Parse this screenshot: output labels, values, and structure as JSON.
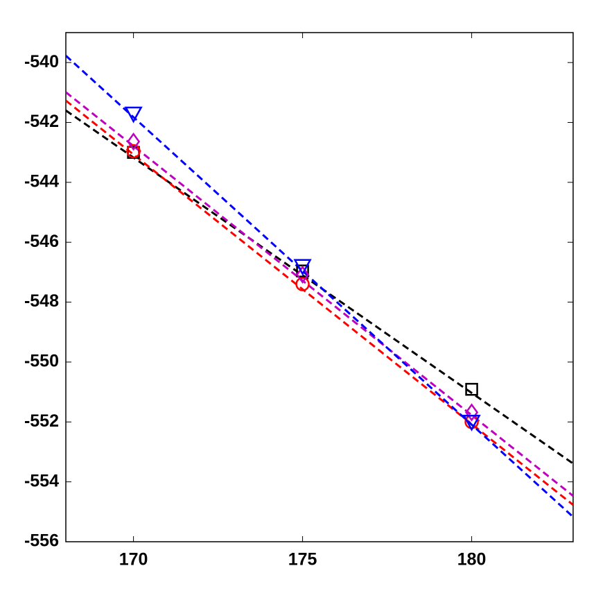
{
  "chart_data": {
    "type": "line",
    "x": [
      170,
      175,
      180
    ],
    "line_x": [
      168,
      183
    ],
    "xlim": [
      168,
      183
    ],
    "xticks": [
      170,
      175,
      180
    ],
    "ylim": [
      -556,
      -539
    ],
    "yticks": [
      -556,
      -554,
      -552,
      -550,
      -548,
      -546,
      -544,
      -542,
      -540
    ],
    "grid": false,
    "series": [
      {
        "color": "#000000",
        "marker": "square",
        "values": [
          -543.0,
          -546.96,
          -550.91
        ],
        "line_values": [
          -541.6,
          -553.39
        ]
      },
      {
        "color": "#ff0000",
        "marker": "circle",
        "values": [
          -542.96,
          -547.4,
          -552.0
        ],
        "line_values": [
          -541.27,
          -554.77
        ]
      },
      {
        "color": "#bf00bf",
        "marker": "diamond",
        "values": [
          -542.64,
          -547.08,
          -551.68
        ],
        "line_values": [
          -540.99,
          -554.47
        ]
      },
      {
        "color": "#0000ff",
        "marker": "triangle-down",
        "values": [
          -541.71,
          -546.8,
          -552.0
        ],
        "line_values": [
          -539.77,
          -555.17
        ]
      }
    ]
  }
}
